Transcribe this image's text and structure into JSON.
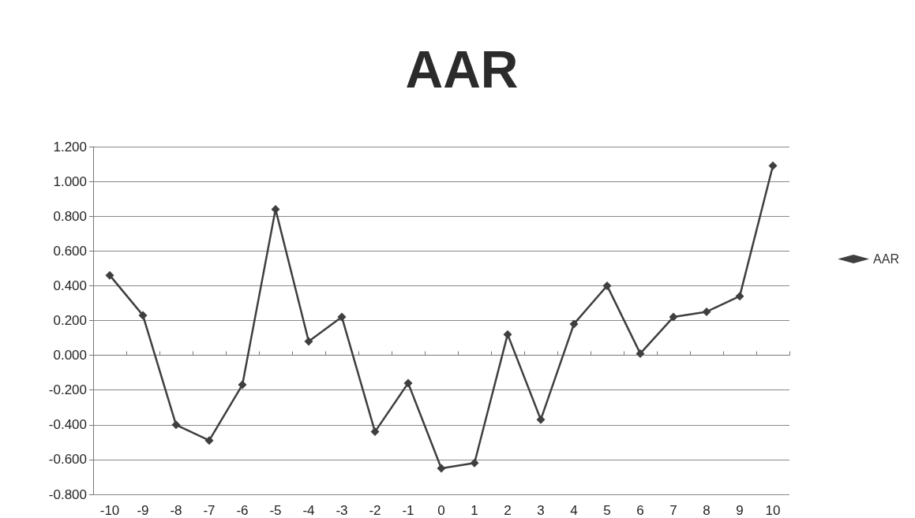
{
  "chart_data": {
    "type": "line",
    "title": "AAR",
    "categories": [
      "-10",
      "-9",
      "-8",
      "-7",
      "-6",
      "-5",
      "-4",
      "-3",
      "-2",
      "-1",
      "0",
      "1",
      "2",
      "3",
      "4",
      "5",
      "6",
      "7",
      "8",
      "9",
      "10"
    ],
    "series": [
      {
        "name": "AAR",
        "color": "#3f3f3f",
        "values": [
          0.46,
          0.23,
          -0.4,
          -0.49,
          -0.17,
          0.84,
          0.08,
          0.22,
          -0.44,
          -0.16,
          -0.65,
          -0.62,
          0.12,
          -0.37,
          0.18,
          0.4,
          0.01,
          0.22,
          0.25,
          0.34,
          1.09
        ]
      }
    ],
    "ylim": [
      -0.8,
      1.2
    ],
    "yticks": [
      {
        "value": -0.8,
        "label": "-0.800"
      },
      {
        "value": -0.6,
        "label": "-0.600"
      },
      {
        "value": -0.4,
        "label": "-0.400"
      },
      {
        "value": -0.2,
        "label": "-0.200"
      },
      {
        "value": 0,
        "label": "0.000"
      },
      {
        "value": 0.2,
        "label": "0.200"
      },
      {
        "value": 0.4,
        "label": "0.400"
      },
      {
        "value": 0.6,
        "label": "0.600"
      },
      {
        "value": 0.8,
        "label": "0.800"
      },
      {
        "value": 1.0,
        "label": "1.000"
      },
      {
        "value": 1.2,
        "label": "1.200"
      }
    ],
    "grid": "y",
    "legend": "right",
    "marker": "diamond",
    "line_style": "solid"
  }
}
